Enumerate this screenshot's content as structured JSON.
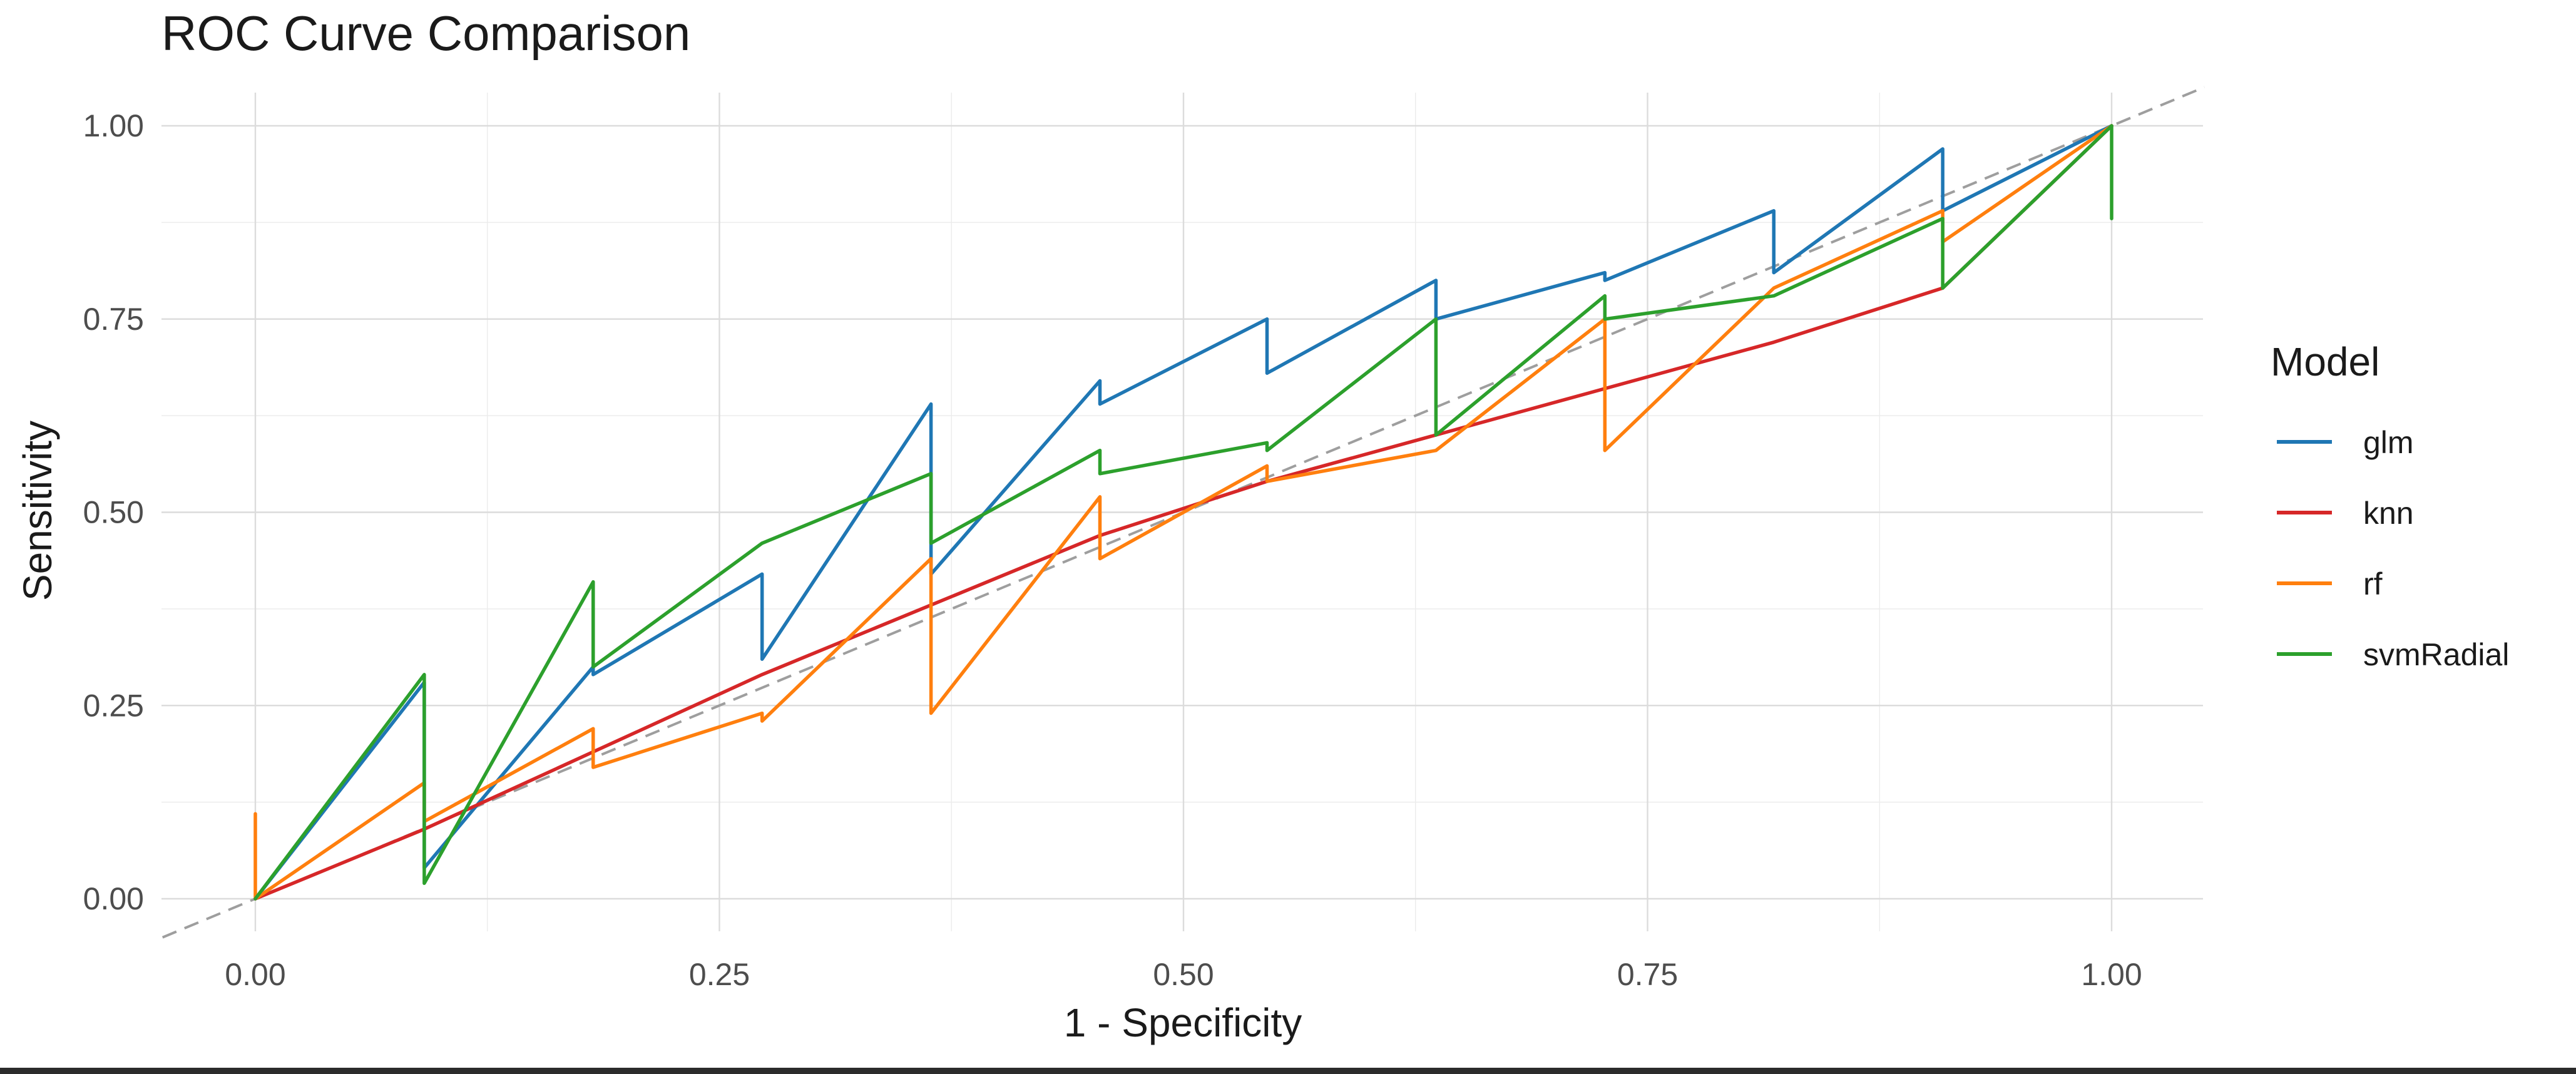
{
  "chart_data": {
    "type": "line",
    "title": "ROC Curve Comparison",
    "xlabel": "1 - Specificity",
    "ylabel": "Sensitivity",
    "xlim": [
      -0.1,
      1.05
    ],
    "ylim": [
      -0.05,
      1.05
    ],
    "x_ticks": [
      0.0,
      0.25,
      0.5,
      0.75,
      1.0
    ],
    "x_tick_labels": [
      "0.00",
      "0.25",
      "0.50",
      "0.75",
      "1.00"
    ],
    "y_ticks": [
      0.0,
      0.25,
      0.5,
      0.75,
      1.0
    ],
    "y_tick_labels": [
      "0.00",
      "0.25",
      "0.50",
      "0.75",
      "1.00"
    ],
    "grid": true,
    "legend": {
      "title": "Model",
      "position": "right"
    },
    "reference_line": {
      "x": [
        -0.05,
        1.05
      ],
      "y": [
        -0.05,
        1.05
      ],
      "style": "dashed",
      "color": "#9e9e9e"
    },
    "series": [
      {
        "name": "glm",
        "color": "#1f77b4",
        "x": [
          0,
          0.091,
          0.091,
          0.182,
          0.182,
          0.273,
          0.273,
          0.364,
          0.364,
          0.455,
          0.455,
          0.545,
          0.545,
          0.636,
          0.636,
          0.727,
          0.727,
          0.818,
          0.818,
          0.909,
          0.909,
          1.0
        ],
        "y": [
          0,
          0.28,
          0.04,
          0.3,
          0.29,
          0.42,
          0.31,
          0.64,
          0.42,
          0.67,
          0.64,
          0.75,
          0.68,
          0.8,
          0.75,
          0.81,
          0.8,
          0.89,
          0.81,
          0.97,
          0.89,
          1.0
        ]
      },
      {
        "name": "knn",
        "color": "#d62728",
        "x": [
          0,
          0.091,
          0.182,
          0.273,
          0.364,
          0.455,
          0.545,
          0.636,
          0.727,
          0.818,
          0.909,
          1.0
        ],
        "y": [
          0,
          0.09,
          0.19,
          0.29,
          0.38,
          0.47,
          0.54,
          0.6,
          0.66,
          0.72,
          0.79,
          1.0
        ]
      },
      {
        "name": "rf",
        "color": "#ff7f0e",
        "x": [
          0,
          0,
          0,
          0.091,
          0.091,
          0.182,
          0.182,
          0.273,
          0.273,
          0.364,
          0.364,
          0.455,
          0.455,
          0.545,
          0.545,
          0.636,
          0.636,
          0.727,
          0.727,
          0.818,
          0.818,
          0.909,
          0.909,
          1.0
        ],
        "y": [
          0,
          0.11,
          0,
          0.15,
          0.1,
          0.22,
          0.17,
          0.24,
          0.23,
          0.44,
          0.24,
          0.52,
          0.44,
          0.56,
          0.54,
          0.58,
          0.58,
          0.75,
          0.58,
          0.79,
          0.79,
          0.89,
          0.85,
          1.0
        ]
      },
      {
        "name": "svmRadial",
        "color": "#2ca02c",
        "x": [
          0,
          0.091,
          0.091,
          0.182,
          0.182,
          0.273,
          0.273,
          0.364,
          0.364,
          0.455,
          0.455,
          0.545,
          0.545,
          0.636,
          0.636,
          0.727,
          0.727,
          0.818,
          0.818,
          0.909,
          0.909,
          1.0,
          1.0
        ],
        "y": [
          0,
          0.29,
          0.02,
          0.41,
          0.3,
          0.46,
          0.46,
          0.55,
          0.46,
          0.58,
          0.55,
          0.59,
          0.58,
          0.75,
          0.6,
          0.78,
          0.75,
          0.78,
          0.78,
          0.88,
          0.79,
          1.0,
          0.88
        ]
      }
    ]
  }
}
